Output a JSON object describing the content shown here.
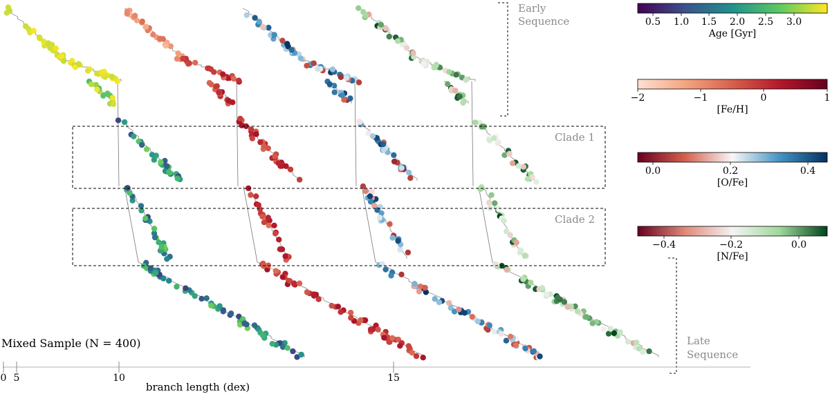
{
  "chart_data": {
    "type": "scatter",
    "description_sample_label": "Mixed Sample (N = 400)",
    "xlabel": "branch length (dex)",
    "x_ticks": [
      "0",
      "5",
      "10",
      "15"
    ],
    "annotations": {
      "early_sequence": [
        "Early",
        "Sequence"
      ],
      "late_sequence": [
        "Late",
        "Sequence"
      ],
      "clade_1": "Clade 1",
      "clade_2": "Clade 2"
    },
    "panels": [
      {
        "name": "Age",
        "cmap": "viridis"
      },
      {
        "name": "[Fe/H]",
        "cmap": "Reds"
      },
      {
        "name": "[O/Fe]",
        "cmap": "RdBu"
      },
      {
        "name": "[N/Fe]",
        "cmap": "RdGn"
      }
    ],
    "colorbars": [
      {
        "label": "Age [Gyr]",
        "ticks": [
          "0.5",
          "1.0",
          "1.5",
          "2.0",
          "2.5",
          "3.0"
        ],
        "range": [
          0.1,
          3.5
        ],
        "stops": [
          "#440154",
          "#3b528b",
          "#21918c",
          "#5ec962",
          "#fde725"
        ]
      },
      {
        "label": "[Fe/H]",
        "ticks": [
          "−2",
          "−1",
          "0",
          "1"
        ],
        "range": [
          -2,
          1
        ],
        "stops": [
          "#fde0d2",
          "#f4a582",
          "#d6604d",
          "#b2182b",
          "#67001f"
        ]
      },
      {
        "label": "[O/Fe]",
        "ticks": [
          "0.0",
          "0.2",
          "0.4"
        ],
        "range": [
          -0.05,
          0.5
        ],
        "stops": [
          "#67001f",
          "#d6604d",
          "#f7f7f7",
          "#4393c3",
          "#053061"
        ]
      },
      {
        "label": "[N/Fe]",
        "ticks": [
          "−0.4",
          "−0.2",
          "0.0"
        ],
        "range": [
          -0.55,
          0.05
        ],
        "stops": [
          "#67001f",
          "#e08a7a",
          "#f4f4f4",
          "#9fd79a",
          "#00441b"
        ]
      }
    ]
  }
}
